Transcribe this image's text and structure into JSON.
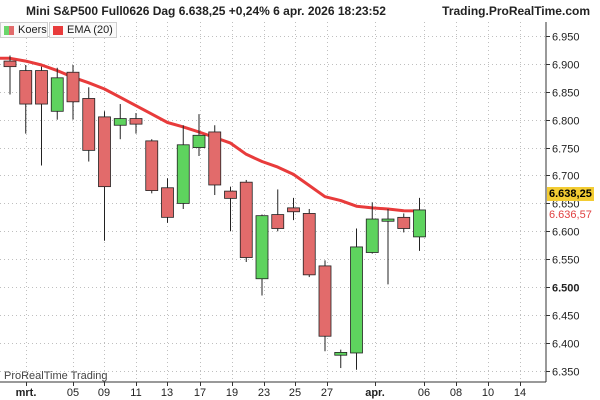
{
  "header": {
    "title": "Mini S&P500 Full0626 Dag 6.638,25 +0,24% 6 apr. 2026 18:23:52",
    "site": "Trading.ProRealTime.com"
  },
  "legend": {
    "koers": "Koers",
    "ema": "EMA (20)"
  },
  "watermark": "ProRealTime Trading",
  "badges": {
    "last_price": "6.638,25",
    "ema_value": "6.636,57"
  },
  "colors": {
    "up": "#5ed35e",
    "down": "#e26b6b",
    "ema": "#e83b3b",
    "grid": "#bfbfbf",
    "last_badge": "#f3cc33"
  },
  "chart_data": {
    "type": "candlestick",
    "y_axis": {
      "min": 6330,
      "max": 6975,
      "ticks": [
        6950,
        6900,
        6850,
        6800,
        6750,
        6700,
        6650,
        6600,
        6550,
        6500,
        6450,
        6400,
        6350
      ],
      "tick_labels": [
        "6.950",
        "6.900",
        "6.850",
        "6.800",
        "6.750",
        "6.700",
        "6.650",
        "6.600",
        "6.550",
        "6.500",
        "6.450",
        "6.400",
        "6.350"
      ],
      "bold_labels": [
        "6.500"
      ]
    },
    "x_axis": {
      "labels": [
        {
          "text": "mrt.",
          "bold": true
        },
        {
          "text": "05"
        },
        {
          "text": "09"
        },
        {
          "text": "11"
        },
        {
          "text": "13"
        },
        {
          "text": "17"
        },
        {
          "text": "19"
        },
        {
          "text": "23"
        },
        {
          "text": "25"
        },
        {
          "text": "27"
        },
        {
          "text": "apr.",
          "bold": true
        },
        {
          "text": "06"
        },
        {
          "text": "08"
        },
        {
          "text": "10"
        },
        {
          "text": "14"
        }
      ]
    },
    "grid": true,
    "candles": [
      {
        "open": 6905,
        "high": 6915,
        "low": 6845,
        "close": 6895
      },
      {
        "open": 6888,
        "high": 6898,
        "low": 6775,
        "close": 6828
      },
      {
        "open": 6888,
        "high": 6895,
        "low": 6718,
        "close": 6828
      },
      {
        "open": 6815,
        "high": 6893,
        "low": 6800,
        "close": 6875
      },
      {
        "open": 6885,
        "high": 6898,
        "low": 6800,
        "close": 6832
      },
      {
        "open": 6838,
        "high": 6858,
        "low": 6725,
        "close": 6745
      },
      {
        "open": 6805,
        "high": 6815,
        "low": 6583,
        "close": 6680
      },
      {
        "open": 6790,
        "high": 6828,
        "low": 6765,
        "close": 6802
      },
      {
        "open": 6802,
        "high": 6812,
        "low": 6775,
        "close": 6792
      },
      {
        "open": 6762,
        "high": 6765,
        "low": 6668,
        "close": 6673
      },
      {
        "open": 6678,
        "high": 6695,
        "low": 6615,
        "close": 6625
      },
      {
        "open": 6650,
        "high": 6790,
        "low": 6640,
        "close": 6755
      },
      {
        "open": 6750,
        "high": 6810,
        "low": 6735,
        "close": 6772
      },
      {
        "open": 6778,
        "high": 6790,
        "low": 6665,
        "close": 6683
      },
      {
        "open": 6672,
        "high": 6680,
        "low": 6600,
        "close": 6659
      },
      {
        "open": 6688,
        "high": 6692,
        "low": 6545,
        "close": 6553
      },
      {
        "open": 6515,
        "high": 6630,
        "low": 6485,
        "close": 6628
      },
      {
        "open": 6630,
        "high": 6675,
        "low": 6600,
        "close": 6605
      },
      {
        "open": 6642,
        "high": 6660,
        "low": 6620,
        "close": 6635
      },
      {
        "open": 6632,
        "high": 6640,
        "low": 6518,
        "close": 6522
      },
      {
        "open": 6538,
        "high": 6548,
        "low": 6385,
        "close": 6412
      },
      {
        "open": 6378,
        "high": 6388,
        "low": 6355,
        "close": 6383
      },
      {
        "open": 6382,
        "high": 6605,
        "low": 6352,
        "close": 6572
      },
      {
        "open": 6562,
        "high": 6652,
        "low": 6560,
        "close": 6622
      },
      {
        "open": 6618,
        "high": 6640,
        "low": 6505,
        "close": 6622
      },
      {
        "open": 6625,
        "high": 6632,
        "low": 6598,
        "close": 6605
      },
      {
        "open": 6590,
        "high": 6660,
        "low": 6565,
        "close": 6638.25
      }
    ],
    "ema": [
      6910,
      6905,
      6898,
      6888,
      6876,
      6866,
      6855,
      6840,
      6825,
      6810,
      6795,
      6787,
      6778,
      6768,
      6758,
      6738,
      6725,
      6715,
      6702,
      6682,
      6662,
      6655,
      6645,
      6642,
      6640,
      6637,
      6636.57
    ]
  }
}
